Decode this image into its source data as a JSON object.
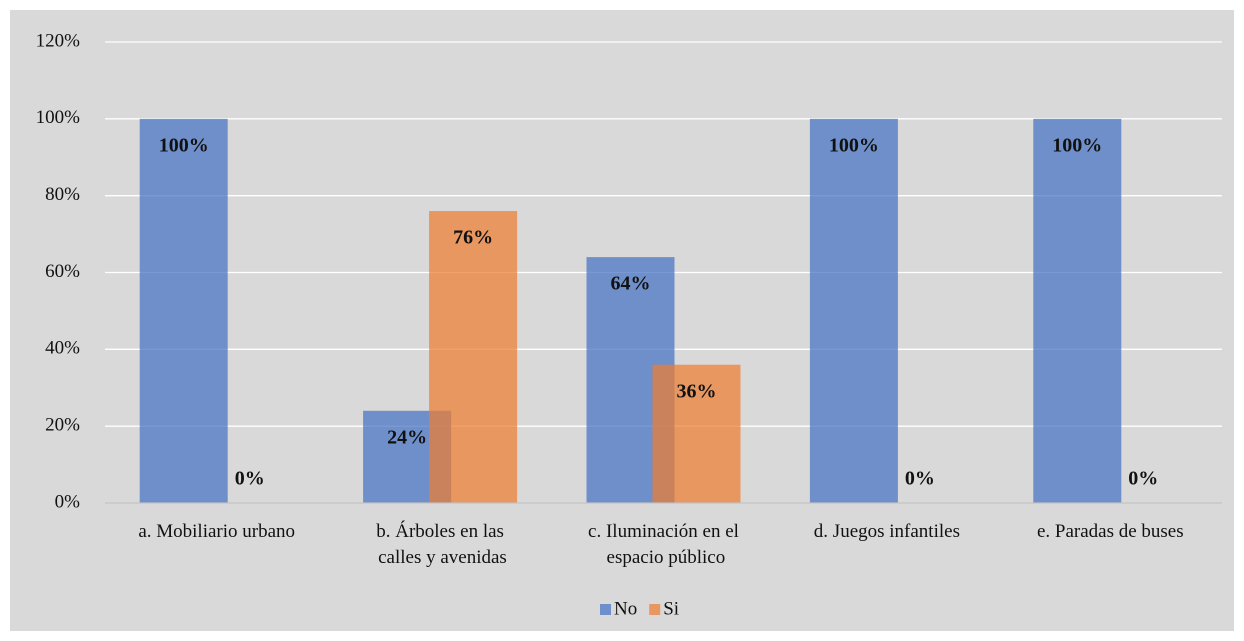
{
  "chart_data": {
    "type": "bar",
    "categories": [
      "a. Mobiliario urbano",
      "b. Árboles en las calles y avenidas",
      "c. Iluminación en el espacio público",
      "d. Juegos infantiles",
      "e. Paradas de buses"
    ],
    "series": [
      {
        "name": "No",
        "color": "#4472c4",
        "values": [
          100,
          24,
          64,
          100,
          100
        ],
        "value_labels": [
          "100%",
          "24%",
          "64%",
          "100%",
          "100%"
        ]
      },
      {
        "name": "Si",
        "color": "#ed7d31",
        "values": [
          0,
          76,
          36,
          0,
          0
        ],
        "value_labels": [
          "0%",
          "76%",
          "36%",
          "0%",
          "0%"
        ]
      }
    ],
    "ylim": [
      0,
      120
    ],
    "yticks": [
      {
        "value": 0,
        "label": "0%"
      },
      {
        "value": 20,
        "label": "20%"
      },
      {
        "value": 40,
        "label": "40%"
      },
      {
        "value": 60,
        "label": "60%"
      },
      {
        "value": 80,
        "label": "80%"
      },
      {
        "value": 100,
        "label": "100%"
      },
      {
        "value": 120,
        "label": "120%"
      }
    ],
    "grid": true,
    "legend": "bottom"
  }
}
